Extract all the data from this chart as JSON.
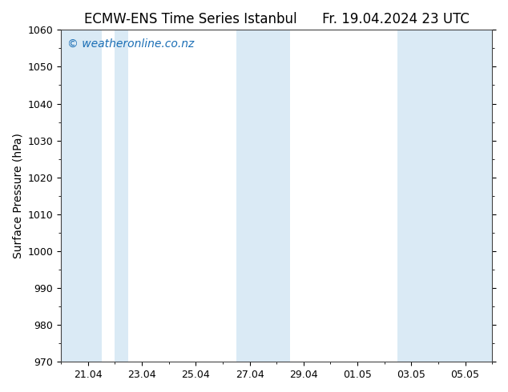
{
  "title": "ECMW-ENS Time Series Istanbul      Fr. 19.04.2024 23 UTC",
  "ylabel": "Surface Pressure (hPa)",
  "ylim": [
    970,
    1060
  ],
  "yticks": [
    970,
    980,
    990,
    1000,
    1010,
    1020,
    1030,
    1040,
    1050,
    1060
  ],
  "xlim": [
    0,
    16
  ],
  "xtick_labels": [
    "21.04",
    "23.04",
    "25.04",
    "27.04",
    "29.04",
    "01.05",
    "03.05",
    "05.05"
  ],
  "xtick_positions": [
    1,
    3,
    5,
    7,
    9,
    11,
    13,
    15
  ],
  "shaded_bands": [
    {
      "x_start": 0.0,
      "x_end": 1.5
    },
    {
      "x_start": 2.5,
      "x_end": 2.0
    },
    {
      "x_start": 6.5,
      "x_end": 7.5
    },
    {
      "x_start": 7.5,
      "x_end": 8.5
    },
    {
      "x_start": 12.5,
      "x_end": 13.5
    },
    {
      "x_start": 13.5,
      "x_end": 16.0
    }
  ],
  "band_color": "#daeaf5",
  "background_color": "#ffffff",
  "watermark": "© weatheronline.co.nz",
  "watermark_color": "#1a6eb5",
  "title_fontsize": 12,
  "axis_label_fontsize": 10,
  "tick_fontsize": 9,
  "watermark_fontsize": 10,
  "fig_width": 6.34,
  "fig_height": 4.9,
  "dpi": 100
}
